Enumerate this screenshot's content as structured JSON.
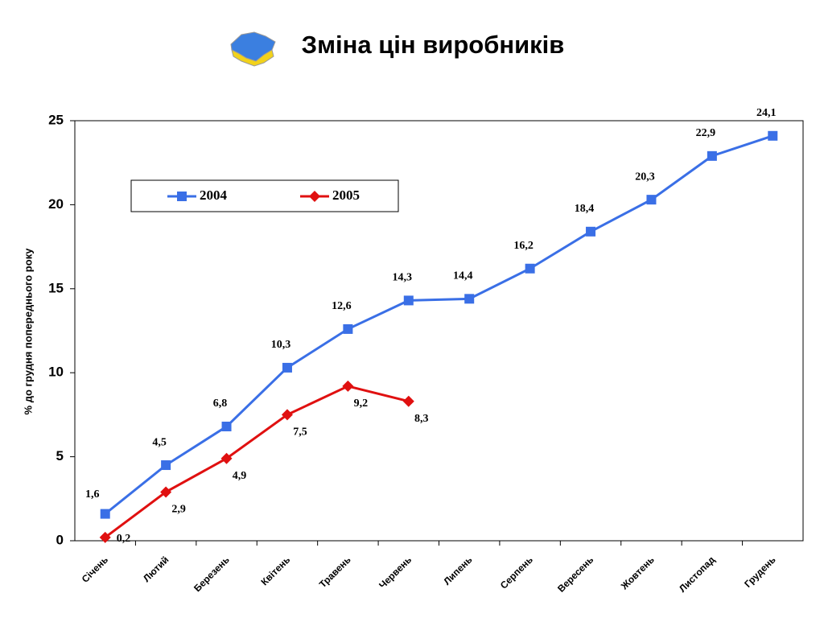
{
  "chart_data": {
    "type": "line",
    "title": "Зміна цін виробників",
    "y_label": "% до грудня попереднього року",
    "categories": [
      "Січень",
      "Лютий",
      "Березень",
      "Квітень",
      "Травень",
      "Червень",
      "Липень",
      "Серпень",
      "Вересень",
      "Жовтень",
      "Листопад",
      "Грудень"
    ],
    "series": [
      {
        "name": "2004",
        "color": "#3a6fe6",
        "marker": "square",
        "values": [
          1.6,
          4.5,
          6.8,
          10.3,
          12.6,
          14.3,
          14.4,
          16.2,
          18.4,
          20.3,
          22.9,
          24.1
        ],
        "value_labels": [
          "1,6",
          "4,5",
          "6,8",
          "10,3",
          "12,6",
          "14,3",
          "14,4",
          "16,2",
          "18,4",
          "20,3",
          "22,9",
          "24,1"
        ]
      },
      {
        "name": "2005",
        "color": "#e01010",
        "marker": "diamond",
        "values": [
          0.2,
          2.9,
          4.9,
          7.5,
          9.2,
          8.3,
          null,
          null,
          null,
          null,
          null,
          null
        ],
        "value_labels": [
          "0,2",
          "2,9",
          "4,9",
          "7,5",
          "9,2",
          "8,3",
          null,
          null,
          null,
          null,
          null,
          null
        ]
      }
    ],
    "ylim": [
      0,
      25
    ],
    "yticks": [
      0,
      5,
      10,
      15,
      20,
      25
    ],
    "grid": false,
    "legend": "top-left"
  }
}
